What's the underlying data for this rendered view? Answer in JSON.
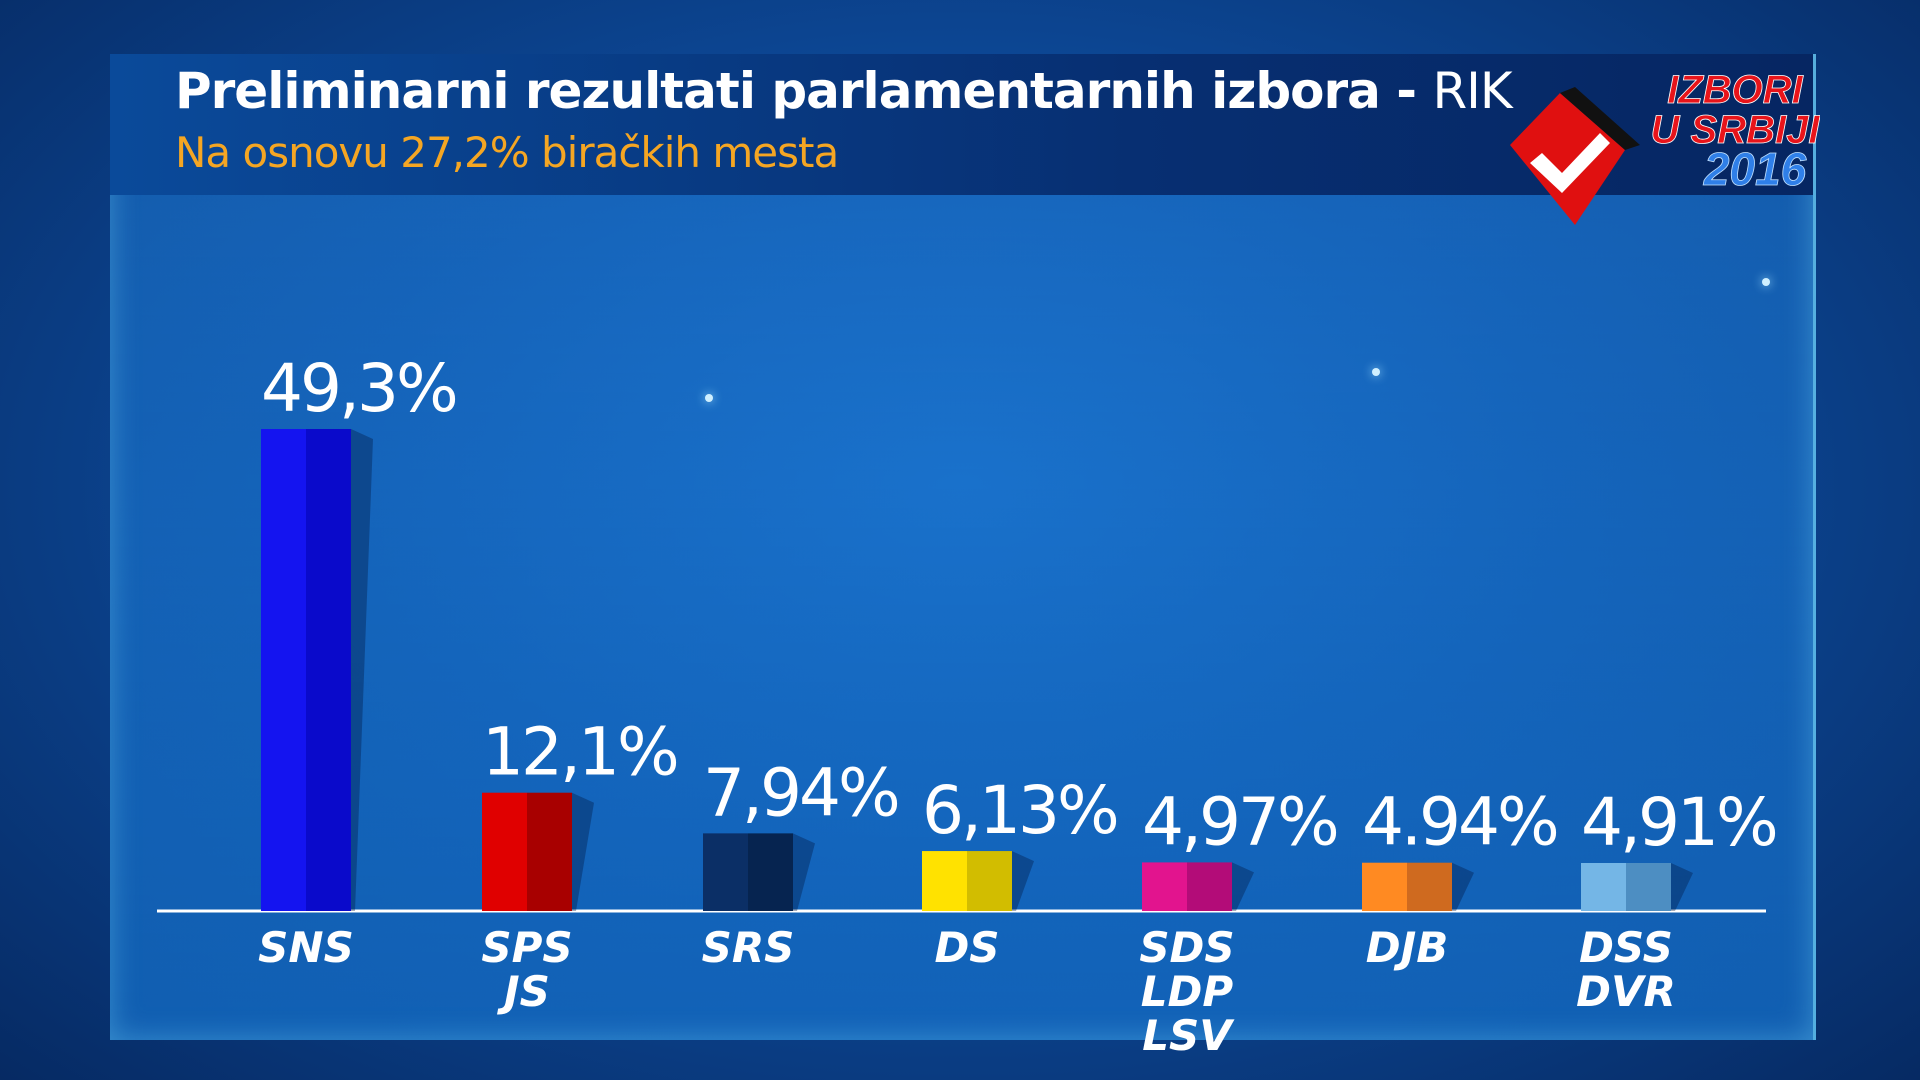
{
  "header": {
    "title": "Preliminarni  rezultati parlamentarnih izbora -",
    "title_source": "RIK",
    "subtitle": "Na osnovu 27,2% biračkih mesta"
  },
  "logo": {
    "line1": "IZBORI",
    "line2": "U SRBIJI",
    "year": "2016",
    "icon": "checkmark-ballot-icon"
  },
  "chart_data": {
    "type": "bar",
    "title": "Preliminarni  rezultati parlamentarnih izbora - RIK",
    "subtitle": "Na osnovu 27,2% biračkih mesta",
    "xlabel": "",
    "ylabel": "",
    "ylim": [
      0,
      50
    ],
    "grid": false,
    "categories": [
      "SNS",
      "SPS JS",
      "SRS",
      "DS",
      "SDS LDP LSV",
      "DJB",
      "DSS DVR"
    ],
    "category_lines": [
      [
        "SNS"
      ],
      [
        "SPS",
        "JS"
      ],
      [
        "SRS"
      ],
      [
        "DS"
      ],
      [
        "SDS",
        "LDP",
        "LSV"
      ],
      [
        "DJB"
      ],
      [
        "DSS",
        "DVR"
      ]
    ],
    "values": [
      49.3,
      12.1,
      7.94,
      6.13,
      4.97,
      4.94,
      4.91
    ],
    "data_labels": [
      "49,3%",
      "12,1%",
      "7,94%",
      "6,13%",
      "4,97%",
      "4.94%",
      "4,91%"
    ],
    "colors": [
      [
        "#1414f0",
        "#0a0acb"
      ],
      [
        "#e00000",
        "#a80000"
      ],
      [
        "#0b2f66",
        "#062450"
      ],
      [
        "#ffe200",
        "#d2bd00"
      ],
      [
        "#e2148e",
        "#b30c78"
      ],
      [
        "#ff8a22",
        "#cf6a1f"
      ],
      [
        "#74b6e6",
        "#4d8ec2"
      ]
    ]
  }
}
